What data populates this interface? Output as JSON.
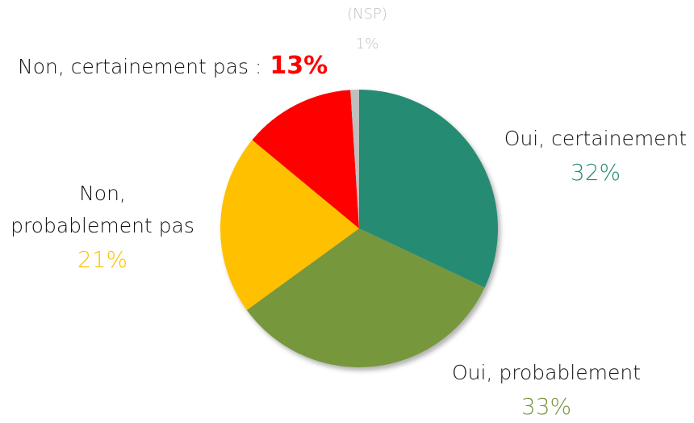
{
  "chart_data": {
    "type": "pie",
    "categories": [
      "Oui, certainement",
      "Oui, probablement",
      "Non, probablement pas",
      "Non, certainement pas :",
      "(NSP)"
    ],
    "values": [
      32,
      33,
      21,
      13,
      1
    ],
    "value_labels": [
      "32%",
      "33%",
      "21%",
      "13%",
      "1%"
    ],
    "colors": [
      "#268b73",
      "#77973d",
      "#ffc000",
      "#ff0000",
      "#bfbfbf"
    ]
  }
}
